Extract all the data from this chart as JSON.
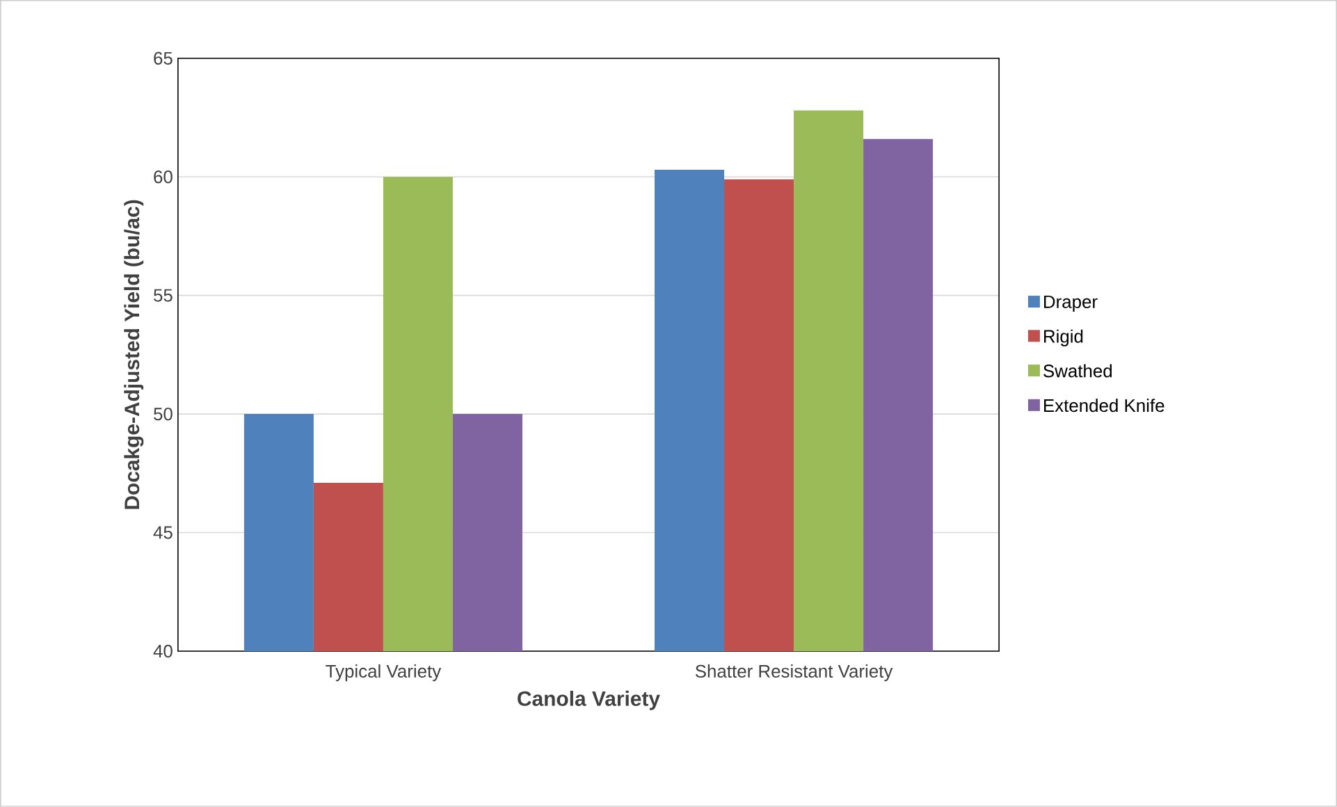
{
  "chart_data": {
    "type": "bar",
    "xlabel": "Canola Variety",
    "ylabel": "Docakge-Adjusted Yield (bu/ac)",
    "categories": [
      "Typical Variety",
      "Shatter Resistant Variety"
    ],
    "series": [
      {
        "name": "Draper",
        "color": "#4f81bd",
        "values": [
          50.0,
          60.3
        ]
      },
      {
        "name": "Rigid",
        "color": "#c0504d",
        "values": [
          47.1,
          59.9
        ]
      },
      {
        "name": "Swathed",
        "color": "#9bbb59",
        "values": [
          60.0,
          62.8
        ]
      },
      {
        "name": "Extended Knife",
        "color": "#8064a2",
        "values": [
          50.0,
          61.6
        ]
      }
    ],
    "ylim": [
      40,
      65
    ],
    "yticks": [
      40,
      45,
      50,
      55,
      60,
      65
    ],
    "grid": "y",
    "legend": "right"
  }
}
